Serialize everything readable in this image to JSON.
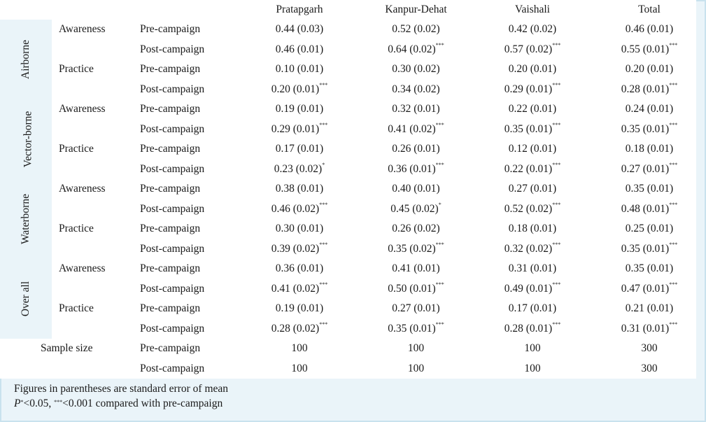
{
  "columns": [
    "Pratapgarh",
    "Kanpur-Dehat",
    "Vaishali",
    "Total"
  ],
  "sections": [
    {
      "label": "Airborne",
      "subs": [
        {
          "label": "Awareness",
          "rows": [
            {
              "phase": "Pre-campaign",
              "cells": [
                [
                  "0.44 (0.03)",
                  ""
                ],
                [
                  "0.52 (0.02)",
                  ""
                ],
                [
                  "0.42 (0.02)",
                  ""
                ],
                [
                  "0.46 (0.01)",
                  ""
                ]
              ]
            },
            {
              "phase": "Post-campaign",
              "cells": [
                [
                  "0.46 (0.01)",
                  ""
                ],
                [
                  "0.64 (0.02)",
                  "***"
                ],
                [
                  "0.57 (0.02)",
                  "***"
                ],
                [
                  "0.55 (0.01)",
                  "***"
                ]
              ]
            }
          ]
        },
        {
          "label": "Practice",
          "rows": [
            {
              "phase": "Pre-campaign",
              "cells": [
                [
                  "0.10 (0.01)",
                  ""
                ],
                [
                  "0.30 (0.02)",
                  ""
                ],
                [
                  "0.20 (0.01)",
                  ""
                ],
                [
                  "0.20 (0.01)",
                  ""
                ]
              ]
            },
            {
              "phase": "Post-campaign",
              "cells": [
                [
                  "0.20 (0.01)",
                  "***"
                ],
                [
                  "0.34 (0.02)",
                  ""
                ],
                [
                  "0.29 (0.01)",
                  "***"
                ],
                [
                  "0.28 (0.01)",
                  "***"
                ]
              ]
            }
          ]
        }
      ]
    },
    {
      "label": "Vector-borne",
      "subs": [
        {
          "label": "Awareness",
          "rows": [
            {
              "phase": "Pre-campaign",
              "cells": [
                [
                  "0.19 (0.01)",
                  ""
                ],
                [
                  "0.32 (0.01)",
                  ""
                ],
                [
                  "0.22 (0.01)",
                  ""
                ],
                [
                  "0.24 (0.01)",
                  ""
                ]
              ]
            },
            {
              "phase": "Post-campaign",
              "cells": [
                [
                  "0.29 (0.01)",
                  "***"
                ],
                [
                  "0.41 (0.02)",
                  "***"
                ],
                [
                  "0.35 (0.01)",
                  "***"
                ],
                [
                  "0.35 (0.01)",
                  "***"
                ]
              ]
            }
          ]
        },
        {
          "label": "Practice",
          "rows": [
            {
              "phase": "Pre-campaign",
              "cells": [
                [
                  "0.17 (0.01)",
                  ""
                ],
                [
                  "0.26 (0.01)",
                  ""
                ],
                [
                  "0.12 (0.01)",
                  ""
                ],
                [
                  "0.18 (0.01)",
                  ""
                ]
              ]
            },
            {
              "phase": "Post-campaign",
              "cells": [
                [
                  "0.23 (0.02)",
                  "*"
                ],
                [
                  "0.36 (0.01)",
                  "***"
                ],
                [
                  "0.22 (0.01)",
                  "***"
                ],
                [
                  "0.27 (0.01)",
                  "***"
                ]
              ]
            }
          ]
        }
      ]
    },
    {
      "label": "Waterborne",
      "subs": [
        {
          "label": "Awareness",
          "rows": [
            {
              "phase": "Pre-campaign",
              "cells": [
                [
                  "0.38 (0.01)",
                  ""
                ],
                [
                  "0.40 (0.01)",
                  ""
                ],
                [
                  "0.27 (0.01)",
                  ""
                ],
                [
                  "0.35 (0.01)",
                  ""
                ]
              ]
            },
            {
              "phase": "Post-campaign",
              "cells": [
                [
                  "0.46 (0.02)",
                  "***"
                ],
                [
                  "0.45 (0.02)",
                  "*"
                ],
                [
                  "0.52 (0.02)",
                  "***"
                ],
                [
                  "0.48 (0.01)",
                  "***"
                ]
              ]
            }
          ]
        },
        {
          "label": "Practice",
          "rows": [
            {
              "phase": "Pre-campaign",
              "cells": [
                [
                  "0.30 (0.01)",
                  ""
                ],
                [
                  "0.26 (0.02)",
                  ""
                ],
                [
                  "0.18 (0.01)",
                  ""
                ],
                [
                  "0.25 (0.01)",
                  ""
                ]
              ]
            },
            {
              "phase": "Post-campaign",
              "cells": [
                [
                  "0.39 (0.02)",
                  "***"
                ],
                [
                  "0.35 (0.02)",
                  "***"
                ],
                [
                  "0.32 (0.02)",
                  "***"
                ],
                [
                  "0.35 (0.01)",
                  "***"
                ]
              ]
            }
          ]
        }
      ]
    },
    {
      "label": "Over all",
      "subs": [
        {
          "label": "Awareness",
          "rows": [
            {
              "phase": "Pre-campaign",
              "cells": [
                [
                  "0.36 (0.01)",
                  ""
                ],
                [
                  "0.41 (0.01)",
                  ""
                ],
                [
                  "0.31 (0.01)",
                  ""
                ],
                [
                  "0.35 (0.01)",
                  ""
                ]
              ]
            },
            {
              "phase": "Post-campaign",
              "cells": [
                [
                  "0.41 (0.02)",
                  "***"
                ],
                [
                  "0.50 (0.01)",
                  "***"
                ],
                [
                  "0.49 (0.01)",
                  "***"
                ],
                [
                  "0.47 (0.01)",
                  "***"
                ]
              ]
            }
          ]
        },
        {
          "label": "Practice",
          "rows": [
            {
              "phase": "Pre-campaign",
              "cells": [
                [
                  "0.19 (0.01)",
                  ""
                ],
                [
                  "0.27 (0.01)",
                  ""
                ],
                [
                  "0.17 (0.01)",
                  ""
                ],
                [
                  "0.21 (0.01)",
                  ""
                ]
              ]
            },
            {
              "phase": "Post-campaign",
              "cells": [
                [
                  "0.28 (0.02)",
                  "***"
                ],
                [
                  "0.35 (0.01)",
                  "***"
                ],
                [
                  "0.28 (0.01)",
                  "***"
                ],
                [
                  "0.31 (0.01)",
                  "***"
                ]
              ]
            }
          ]
        }
      ]
    }
  ],
  "sample": {
    "label": "Sample size",
    "rows": [
      {
        "phase": "Pre-campaign",
        "cells": [
          "100",
          "100",
          "100",
          "300"
        ]
      },
      {
        "phase": "Post-campaign",
        "cells": [
          "100",
          "100",
          "100",
          "300"
        ]
      }
    ]
  },
  "notes": {
    "line1": "Figures in parentheses are standard error of mean",
    "line2_p": "P",
    "line2_sup1": "*",
    "line2_mid": "<0.05, ",
    "line2_sup2": "***",
    "line2_end": "<0.001 compared with pre-campaign"
  }
}
